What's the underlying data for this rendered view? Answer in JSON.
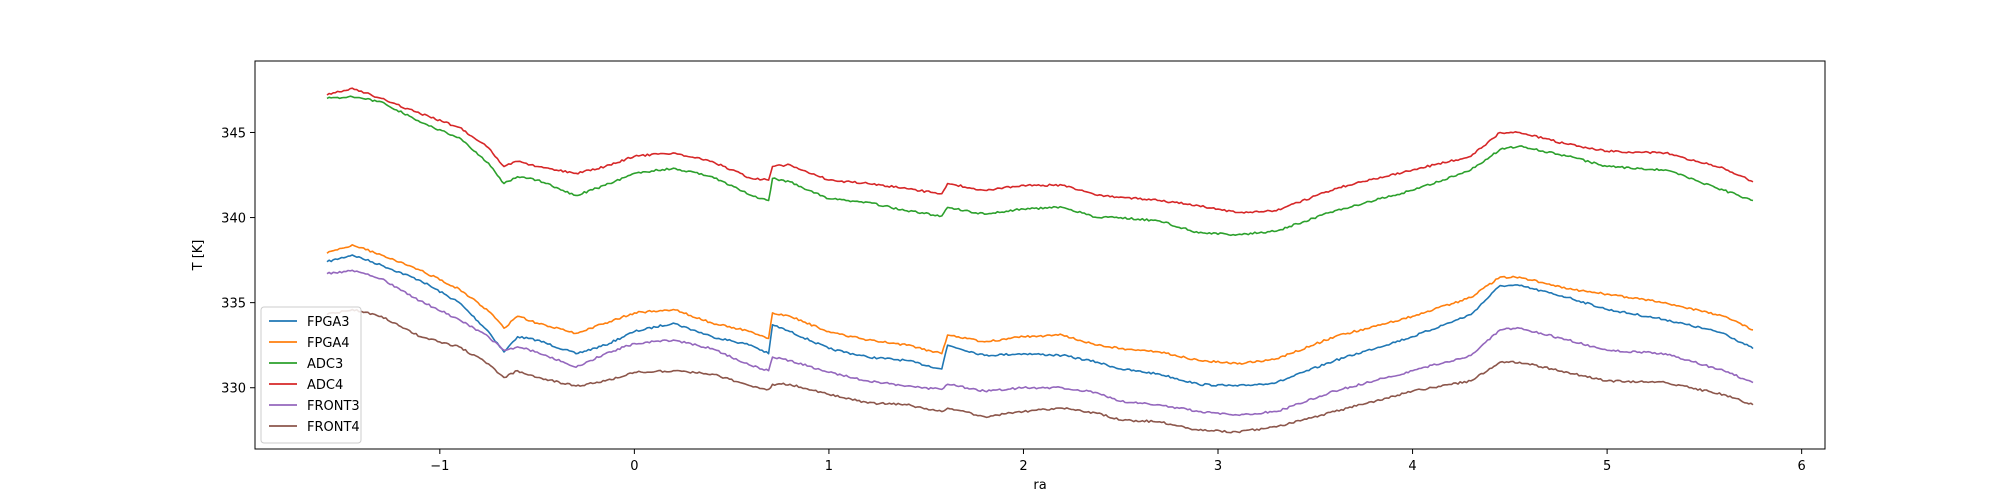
{
  "chart_data": {
    "type": "line",
    "title": "",
    "xlabel": "ra",
    "ylabel": "T [K]",
    "xlim": [
      -1.95,
      6.12
    ],
    "ylim": [
      326.4,
      349.2
    ],
    "xticks": [
      -1,
      0,
      1,
      2,
      3,
      4,
      5,
      6
    ],
    "yticks": [
      330,
      335,
      340,
      345
    ],
    "xtick_labels": [
      "−1",
      "0",
      "1",
      "2",
      "3",
      "4",
      "5",
      "6"
    ],
    "ytick_labels": [
      "330",
      "335",
      "340",
      "345"
    ],
    "grid": false,
    "legend_position": "lower-left",
    "series": [
      {
        "name": "FPGA3",
        "color": "#1f77b4",
        "x": [
          -1.58,
          -1.45,
          -1.3,
          -1.1,
          -0.9,
          -0.75,
          -0.67,
          -0.6,
          -0.5,
          -0.3,
          -0.15,
          0.0,
          0.2,
          0.4,
          0.6,
          0.69,
          0.71,
          0.8,
          1.0,
          1.2,
          1.4,
          1.58,
          1.61,
          1.8,
          2.0,
          2.2,
          2.38,
          2.5,
          2.7,
          2.9,
          3.1,
          3.3,
          3.6,
          4.0,
          4.3,
          4.45,
          4.55,
          4.8,
          5.0,
          5.3,
          5.6,
          5.75
        ],
        "y": [
          337.4,
          337.8,
          337.2,
          336.3,
          335.0,
          333.3,
          332.1,
          333.0,
          332.8,
          332.0,
          332.5,
          333.3,
          333.8,
          333.0,
          332.5,
          332.0,
          333.7,
          333.3,
          332.3,
          331.8,
          331.6,
          331.1,
          332.5,
          331.9,
          332.0,
          331.9,
          331.5,
          331.1,
          330.8,
          330.2,
          330.1,
          330.3,
          331.6,
          333.0,
          334.3,
          336.0,
          336.0,
          335.3,
          334.6,
          334.0,
          333.2,
          332.3
        ]
      },
      {
        "name": "FPGA4",
        "color": "#ff7f0e",
        "x": [
          -1.58,
          -1.45,
          -1.3,
          -1.1,
          -0.9,
          -0.75,
          -0.67,
          -0.6,
          -0.5,
          -0.3,
          -0.15,
          0.0,
          0.2,
          0.4,
          0.6,
          0.69,
          0.71,
          0.8,
          1.0,
          1.2,
          1.4,
          1.58,
          1.61,
          1.8,
          2.0,
          2.2,
          2.38,
          2.5,
          2.7,
          2.9,
          3.1,
          3.3,
          3.6,
          4.0,
          4.3,
          4.45,
          4.55,
          4.8,
          5.0,
          5.3,
          5.6,
          5.75
        ],
        "y": [
          337.9,
          338.4,
          337.8,
          336.9,
          335.8,
          334.5,
          333.5,
          334.2,
          333.8,
          333.2,
          333.8,
          334.4,
          334.6,
          333.8,
          333.3,
          332.9,
          334.4,
          334.2,
          333.3,
          332.8,
          332.5,
          332.0,
          333.1,
          332.7,
          333.0,
          333.1,
          332.5,
          332.3,
          332.1,
          331.6,
          331.4,
          331.7,
          333.0,
          334.2,
          335.3,
          336.5,
          336.5,
          335.8,
          335.5,
          335.0,
          334.2,
          333.4
        ]
      },
      {
        "name": "ADC3",
        "color": "#2ca02c",
        "x": [
          -1.58,
          -1.45,
          -1.3,
          -1.1,
          -0.9,
          -0.75,
          -0.67,
          -0.6,
          -0.5,
          -0.3,
          -0.15,
          0.0,
          0.2,
          0.4,
          0.6,
          0.69,
          0.71,
          0.8,
          1.0,
          1.2,
          1.4,
          1.58,
          1.61,
          1.8,
          2.0,
          2.2,
          2.38,
          2.5,
          2.7,
          2.9,
          3.1,
          3.3,
          3.6,
          4.0,
          4.3,
          4.45,
          4.55,
          4.8,
          5.0,
          5.3,
          5.6,
          5.75
        ],
        "y": [
          347.0,
          347.1,
          346.8,
          345.6,
          344.7,
          343.2,
          342.0,
          342.4,
          342.2,
          341.3,
          341.9,
          342.6,
          342.9,
          342.4,
          341.3,
          341.0,
          342.3,
          342.1,
          341.1,
          340.9,
          340.4,
          340.1,
          340.6,
          340.2,
          340.5,
          340.6,
          340.0,
          340.0,
          339.8,
          339.1,
          339.0,
          339.2,
          340.4,
          341.6,
          342.8,
          344.0,
          344.2,
          343.6,
          343.0,
          342.8,
          341.6,
          341.0
        ]
      },
      {
        "name": "ADC4",
        "color": "#d62728",
        "x": [
          -1.58,
          -1.45,
          -1.3,
          -1.1,
          -0.9,
          -0.75,
          -0.67,
          -0.6,
          -0.5,
          -0.3,
          -0.15,
          0.0,
          0.2,
          0.4,
          0.6,
          0.69,
          0.71,
          0.8,
          1.0,
          1.2,
          1.4,
          1.58,
          1.61,
          1.8,
          2.0,
          2.2,
          2.38,
          2.5,
          2.7,
          2.9,
          3.1,
          3.3,
          3.6,
          4.0,
          4.3,
          4.45,
          4.55,
          4.8,
          5.0,
          5.3,
          5.6,
          5.75
        ],
        "y": [
          347.2,
          347.6,
          347.0,
          346.1,
          345.3,
          344.1,
          343.0,
          343.3,
          343.0,
          342.6,
          343.0,
          343.6,
          343.8,
          343.3,
          342.3,
          342.2,
          343.0,
          343.1,
          342.2,
          342.0,
          341.7,
          341.4,
          342.0,
          341.6,
          341.9,
          341.9,
          341.3,
          341.2,
          341.0,
          340.7,
          340.3,
          340.4,
          341.7,
          342.8,
          343.6,
          345.0,
          345.0,
          344.3,
          343.9,
          343.8,
          342.9,
          342.1
        ]
      },
      {
        "name": "FRONT3",
        "color": "#9467bd",
        "x": [
          -1.58,
          -1.45,
          -1.3,
          -1.1,
          -0.9,
          -0.75,
          -0.67,
          -0.6,
          -0.5,
          -0.3,
          -0.15,
          0.0,
          0.2,
          0.4,
          0.6,
          0.69,
          0.71,
          0.8,
          1.0,
          1.2,
          1.4,
          1.58,
          1.61,
          1.8,
          2.0,
          2.2,
          2.38,
          2.5,
          2.7,
          2.9,
          3.1,
          3.3,
          3.6,
          4.0,
          4.3,
          4.45,
          4.55,
          4.8,
          5.0,
          5.3,
          5.6,
          5.75
        ],
        "y": [
          336.7,
          336.9,
          336.4,
          335.1,
          334.0,
          333.0,
          332.2,
          332.4,
          332.1,
          331.2,
          332.0,
          332.6,
          332.8,
          332.3,
          331.3,
          331.0,
          331.8,
          331.6,
          330.9,
          330.4,
          330.1,
          329.9,
          330.2,
          329.8,
          330.0,
          330.0,
          329.7,
          329.2,
          329.0,
          328.6,
          328.4,
          328.6,
          329.8,
          331.0,
          331.9,
          333.4,
          333.5,
          332.8,
          332.2,
          332.0,
          331.0,
          330.3
        ]
      },
      {
        "name": "FRONT4",
        "color": "#8c564b",
        "x": [
          -1.58,
          -1.45,
          -1.3,
          -1.1,
          -0.9,
          -0.75,
          -0.67,
          -0.6,
          -0.5,
          -0.3,
          -0.15,
          0.0,
          0.2,
          0.4,
          0.6,
          0.69,
          0.71,
          0.8,
          1.0,
          1.2,
          1.4,
          1.58,
          1.61,
          1.8,
          2.0,
          2.2,
          2.38,
          2.5,
          2.7,
          2.9,
          3.1,
          3.3,
          3.6,
          4.0,
          4.3,
          4.45,
          4.55,
          4.8,
          5.0,
          5.3,
          5.6,
          5.75
        ],
        "y": [
          334.3,
          334.6,
          334.2,
          333.0,
          332.4,
          331.4,
          330.6,
          331.0,
          330.6,
          330.1,
          330.4,
          330.9,
          331.0,
          330.8,
          330.1,
          329.9,
          330.2,
          330.2,
          329.6,
          329.1,
          329.0,
          328.6,
          328.8,
          328.3,
          328.6,
          328.8,
          328.5,
          328.1,
          328.0,
          327.5,
          327.4,
          327.7,
          328.6,
          329.8,
          330.4,
          331.5,
          331.5,
          330.9,
          330.4,
          330.3,
          329.6,
          329.0
        ]
      }
    ]
  }
}
